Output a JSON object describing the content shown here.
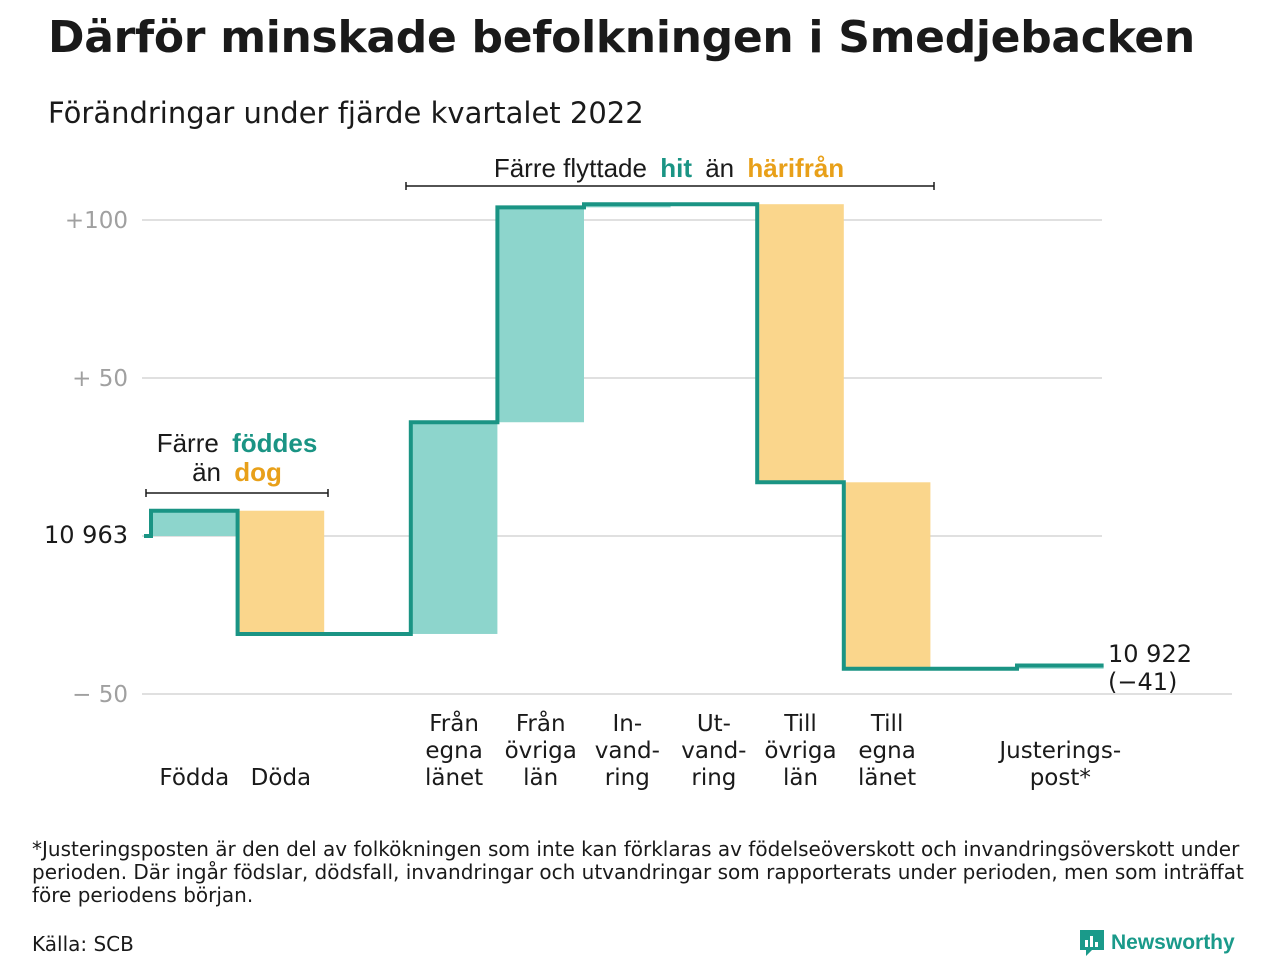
{
  "header": {
    "title": "Därför minskade befolkningen i Smedjebacken",
    "subtitle": "Förändringar under fjärde kvartalet 2022"
  },
  "chart_data": {
    "type": "waterfall",
    "start_label": "10 963",
    "start_value": 10963,
    "end_label": "10 922",
    "end_change_label": "(−41)",
    "end_value": 10922,
    "total_change": -41,
    "y_axis": {
      "range": [
        -55,
        108
      ],
      "ticks": [
        100,
        50,
        -50
      ],
      "tick_labels": [
        "+100",
        "+ 50",
        "− 50"
      ],
      "grid": true
    },
    "colors": {
      "increase": "#8dd5cc",
      "decrease": "#fad68c",
      "line": "#1a9484",
      "increase_text": "#1a9484",
      "decrease_text": "#e8a019"
    },
    "steps": [
      {
        "key": "fodda",
        "label_lines": [
          "Födda"
        ],
        "change": 8,
        "kind": "increase"
      },
      {
        "key": "doda",
        "label_lines": [
          "Döda"
        ],
        "change": -39,
        "kind": "decrease"
      },
      {
        "key": "spacer1",
        "label_lines": [],
        "change": 0,
        "kind": "none"
      },
      {
        "key": "fran_egna",
        "label_lines": [
          "Från",
          "egna",
          "länet"
        ],
        "change": 67,
        "kind": "increase"
      },
      {
        "key": "fran_ovriga",
        "label_lines": [
          "Från",
          "övriga",
          "län"
        ],
        "change": 68,
        "kind": "increase"
      },
      {
        "key": "invandring",
        "label_lines": [
          "In-",
          "vand-",
          "ring"
        ],
        "change": 1,
        "kind": "increase"
      },
      {
        "key": "utvandring",
        "label_lines": [
          "Ut-",
          "vand-",
          "ring"
        ],
        "change": 0,
        "kind": "decrease"
      },
      {
        "key": "till_ovriga",
        "label_lines": [
          "Till",
          "övriga",
          "län"
        ],
        "change": -88,
        "kind": "decrease"
      },
      {
        "key": "till_egna",
        "label_lines": [
          "Till",
          "egna",
          "länet"
        ],
        "change": -59,
        "kind": "decrease"
      },
      {
        "key": "spacer2",
        "label_lines": [],
        "change": 0,
        "kind": "none"
      },
      {
        "key": "justering",
        "label_lines": [
          "Justerings-",
          "post*"
        ],
        "change": 1,
        "kind": "increase"
      }
    ],
    "annotations": {
      "births_deaths": {
        "text": "Färre",
        "highlight_increase": "föddes",
        "line2_prefix": "än",
        "highlight_decrease": "dog"
      },
      "migration": {
        "prefix": "Färre flyttade",
        "highlight_increase": "hit",
        "middle": "än",
        "highlight_decrease": "härifrån"
      }
    }
  },
  "footer": {
    "footnote": "*Justeringsposten är den del av folkökningen som inte kan förklaras av födelseöverskott och invandringsöverskott under perioden. Där ingår födslar, dödsfall, invandringar och utvandringar som rapporterats under perioden, men som inträffat före periodens början.",
    "source": "Källa: SCB",
    "brand": "Newsworthy"
  }
}
